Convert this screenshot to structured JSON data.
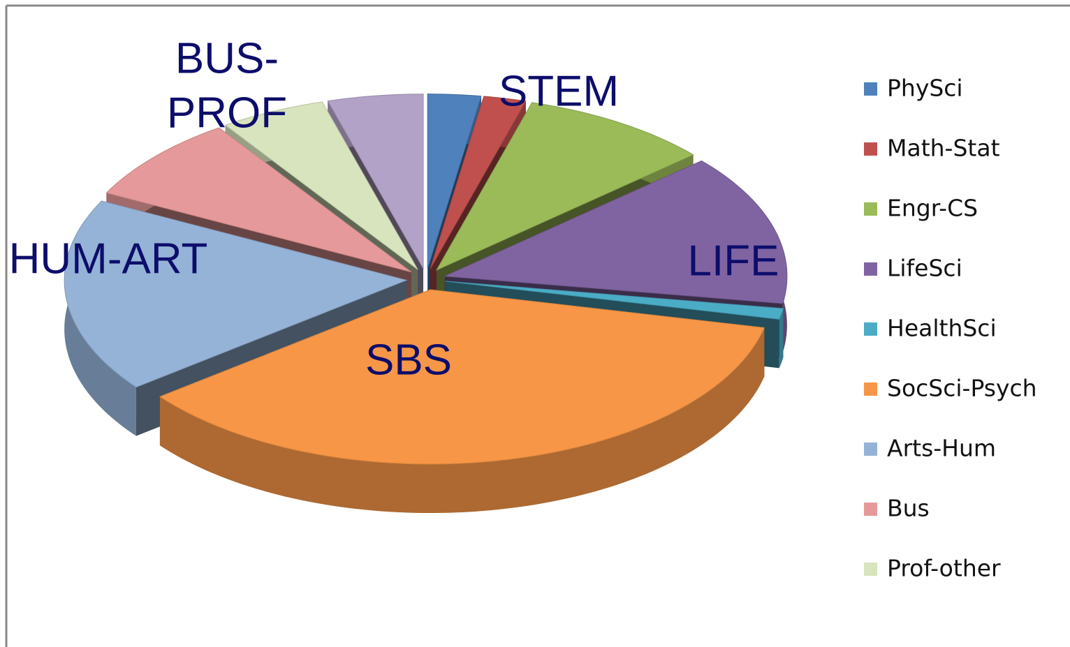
{
  "chart_data": {
    "type": "pie",
    "categories": [
      "PhySci",
      "Math-Stat",
      "Engr-CS",
      "LifeSci",
      "HealthSci",
      "SocSci-Psych",
      "Arts-Hum",
      "Bus",
      "Prof-other",
      null
    ],
    "values": [
      2.5,
      2,
      9,
      14,
      1,
      36,
      18,
      8,
      5,
      4.5
    ],
    "colors": [
      "#4f81bd",
      "#c0504d",
      "#9bbb59",
      "#8064a2",
      "#4bacc6",
      "#f79646",
      "#95b3d7",
      "#e6999a",
      "#d7e4bd",
      "#b3a2c7"
    ],
    "annotations": [
      [
        "STEM"
      ],
      [
        "LIFE"
      ],
      [
        "SBS"
      ],
      [
        "HUM-ART"
      ],
      [
        "BUS-",
        "PROF"
      ]
    ],
    "legend": "right"
  }
}
